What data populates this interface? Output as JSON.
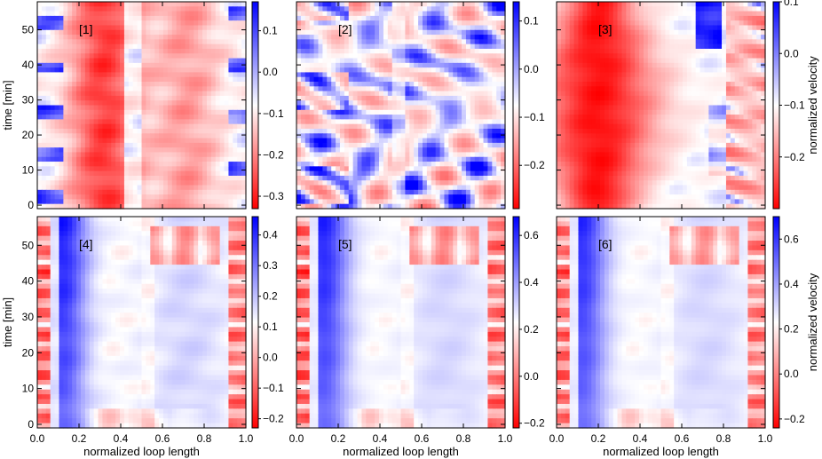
{
  "chart_data": [
    {
      "type": "heatmap",
      "panel_label": "[1]",
      "xlabel": "",
      "ylabel": "time [min]",
      "colorbar_label": "",
      "xlim": [
        0,
        1
      ],
      "ylim": [
        -1,
        58
      ],
      "x_ticks": [],
      "y_ticks": [
        "0",
        "10",
        "20",
        "30",
        "40",
        "50"
      ],
      "colorbar_range": [
        -0.33,
        0.17
      ],
      "colorbar_ticks": [
        "0.1",
        "0.0",
        "−0.1",
        "−0.2",
        "−0.3"
      ],
      "pattern": {
        "type": "redleft",
        "shift": 0.32,
        "amp": -0.28
      }
    },
    {
      "type": "heatmap",
      "panel_label": "[2]",
      "xlabel": "",
      "ylabel": "",
      "colorbar_label": "",
      "xlim": [
        0,
        1
      ],
      "ylim": [
        -1,
        58
      ],
      "x_ticks": [],
      "y_ticks": [],
      "colorbar_range": [
        -0.29,
        0.14
      ],
      "colorbar_ticks": [
        "0.1",
        "0.0",
        "−0.1",
        "−0.2"
      ],
      "pattern": {
        "type": "mixed",
        "shift": 0.27,
        "amp": -0.2
      }
    },
    {
      "type": "heatmap",
      "panel_label": "[3]",
      "xlabel": "",
      "ylabel": "",
      "colorbar_label": "normalized velocity",
      "xlim": [
        0,
        1
      ],
      "ylim": [
        -1,
        58
      ],
      "x_ticks": [],
      "y_ticks": [],
      "colorbar_range": [
        -0.3,
        0.1
      ],
      "colorbar_ticks": [
        "0.1",
        "0.0",
        "−0.1",
        "−0.2"
      ],
      "pattern": {
        "type": "redwedge",
        "shift": 0.2,
        "amp": -0.28
      }
    },
    {
      "type": "heatmap",
      "panel_label": "[4]",
      "xlabel": "normalized loop length",
      "ylabel": "time [min]",
      "colorbar_label": "",
      "xlim": [
        0,
        1
      ],
      "ylim": [
        -1,
        58
      ],
      "x_ticks": [
        "0.0",
        "0.2",
        "0.4",
        "0.6",
        "0.8",
        "1.0"
      ],
      "y_ticks": [
        "0",
        "10",
        "20",
        "30",
        "40",
        "50"
      ],
      "colorbar_range": [
        -0.23,
        0.46
      ],
      "colorbar_ticks": [
        "0.4",
        "0.3",
        "0.2",
        "0.1",
        "0.0",
        "−0.1",
        "−0.2"
      ],
      "pattern": {
        "type": "blueleft",
        "shift": 0.12,
        "amp": 0.42
      }
    },
    {
      "type": "heatmap",
      "panel_label": "[5]",
      "xlabel": "normalized loop length",
      "ylabel": "",
      "colorbar_label": "",
      "xlim": [
        0,
        1
      ],
      "ylim": [
        -1,
        58
      ],
      "x_ticks": [
        "0.0",
        "0.2",
        "0.4",
        "0.6",
        "0.8",
        "1.0"
      ],
      "y_ticks": [],
      "colorbar_range": [
        -0.22,
        0.68
      ],
      "colorbar_ticks": [
        "0.6",
        "0.4",
        "0.2",
        "0.0",
        "−0.2"
      ],
      "pattern": {
        "type": "blueleft",
        "shift": 0.13,
        "amp": 0.6
      }
    },
    {
      "type": "heatmap",
      "panel_label": "[6]",
      "xlabel": "normalized loop length",
      "ylabel": "",
      "colorbar_label": "normalized velocity",
      "xlim": [
        0,
        1
      ],
      "ylim": [
        -1,
        58
      ],
      "x_ticks": [
        "0.0",
        "0.2",
        "0.4",
        "0.6",
        "0.8",
        "1.0"
      ],
      "y_ticks": [],
      "colorbar_range": [
        -0.24,
        0.7
      ],
      "colorbar_ticks": [
        "0.6",
        "0.4",
        "0.2",
        "0.0",
        "−0.2"
      ],
      "pattern": {
        "type": "blueleft",
        "shift": 0.12,
        "amp": 0.6
      }
    }
  ],
  "colors": {
    "negative": "#ff0000",
    "zero": "#ffffff",
    "positive": "#0000ff",
    "axis": "#000000"
  }
}
